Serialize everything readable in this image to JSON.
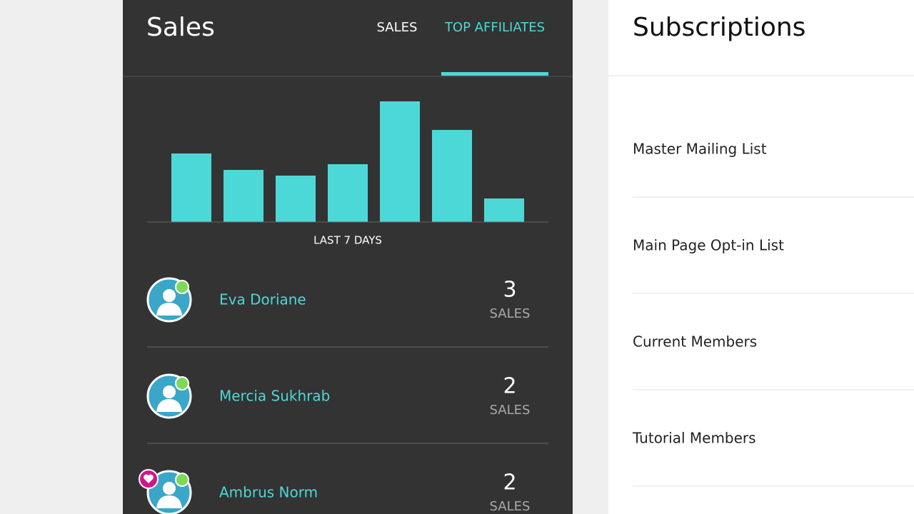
{
  "sales_panel": {
    "title": "Sales",
    "tabs": [
      "SALES",
      "TOP AFFILIATES"
    ],
    "active_tab": 1
  },
  "chart_data": {
    "type": "bar",
    "categories": [
      null,
      null,
      null,
      null,
      null,
      null,
      null
    ],
    "values": [
      96,
      73,
      65,
      81,
      169,
      129,
      33
    ],
    "color": "#4dd8d8",
    "ylim": [
      0,
      170
    ],
    "x_label": "LAST 7 DAYS"
  },
  "affiliates": [
    {
      "name": "Eva Doriane",
      "sales": 3,
      "unit": "SALES",
      "favorite": false
    },
    {
      "name": "Mercia Sukhrab",
      "sales": 2,
      "unit": "SALES",
      "favorite": false
    },
    {
      "name": "Ambrus Norm",
      "sales": 2,
      "unit": "SALES",
      "favorite": true
    }
  ],
  "subscriptions": {
    "title": "Subscriptions",
    "lists": [
      "Master Mailing List",
      "Main Page Opt-in List",
      "Current Members",
      "Tutorial Members"
    ]
  }
}
